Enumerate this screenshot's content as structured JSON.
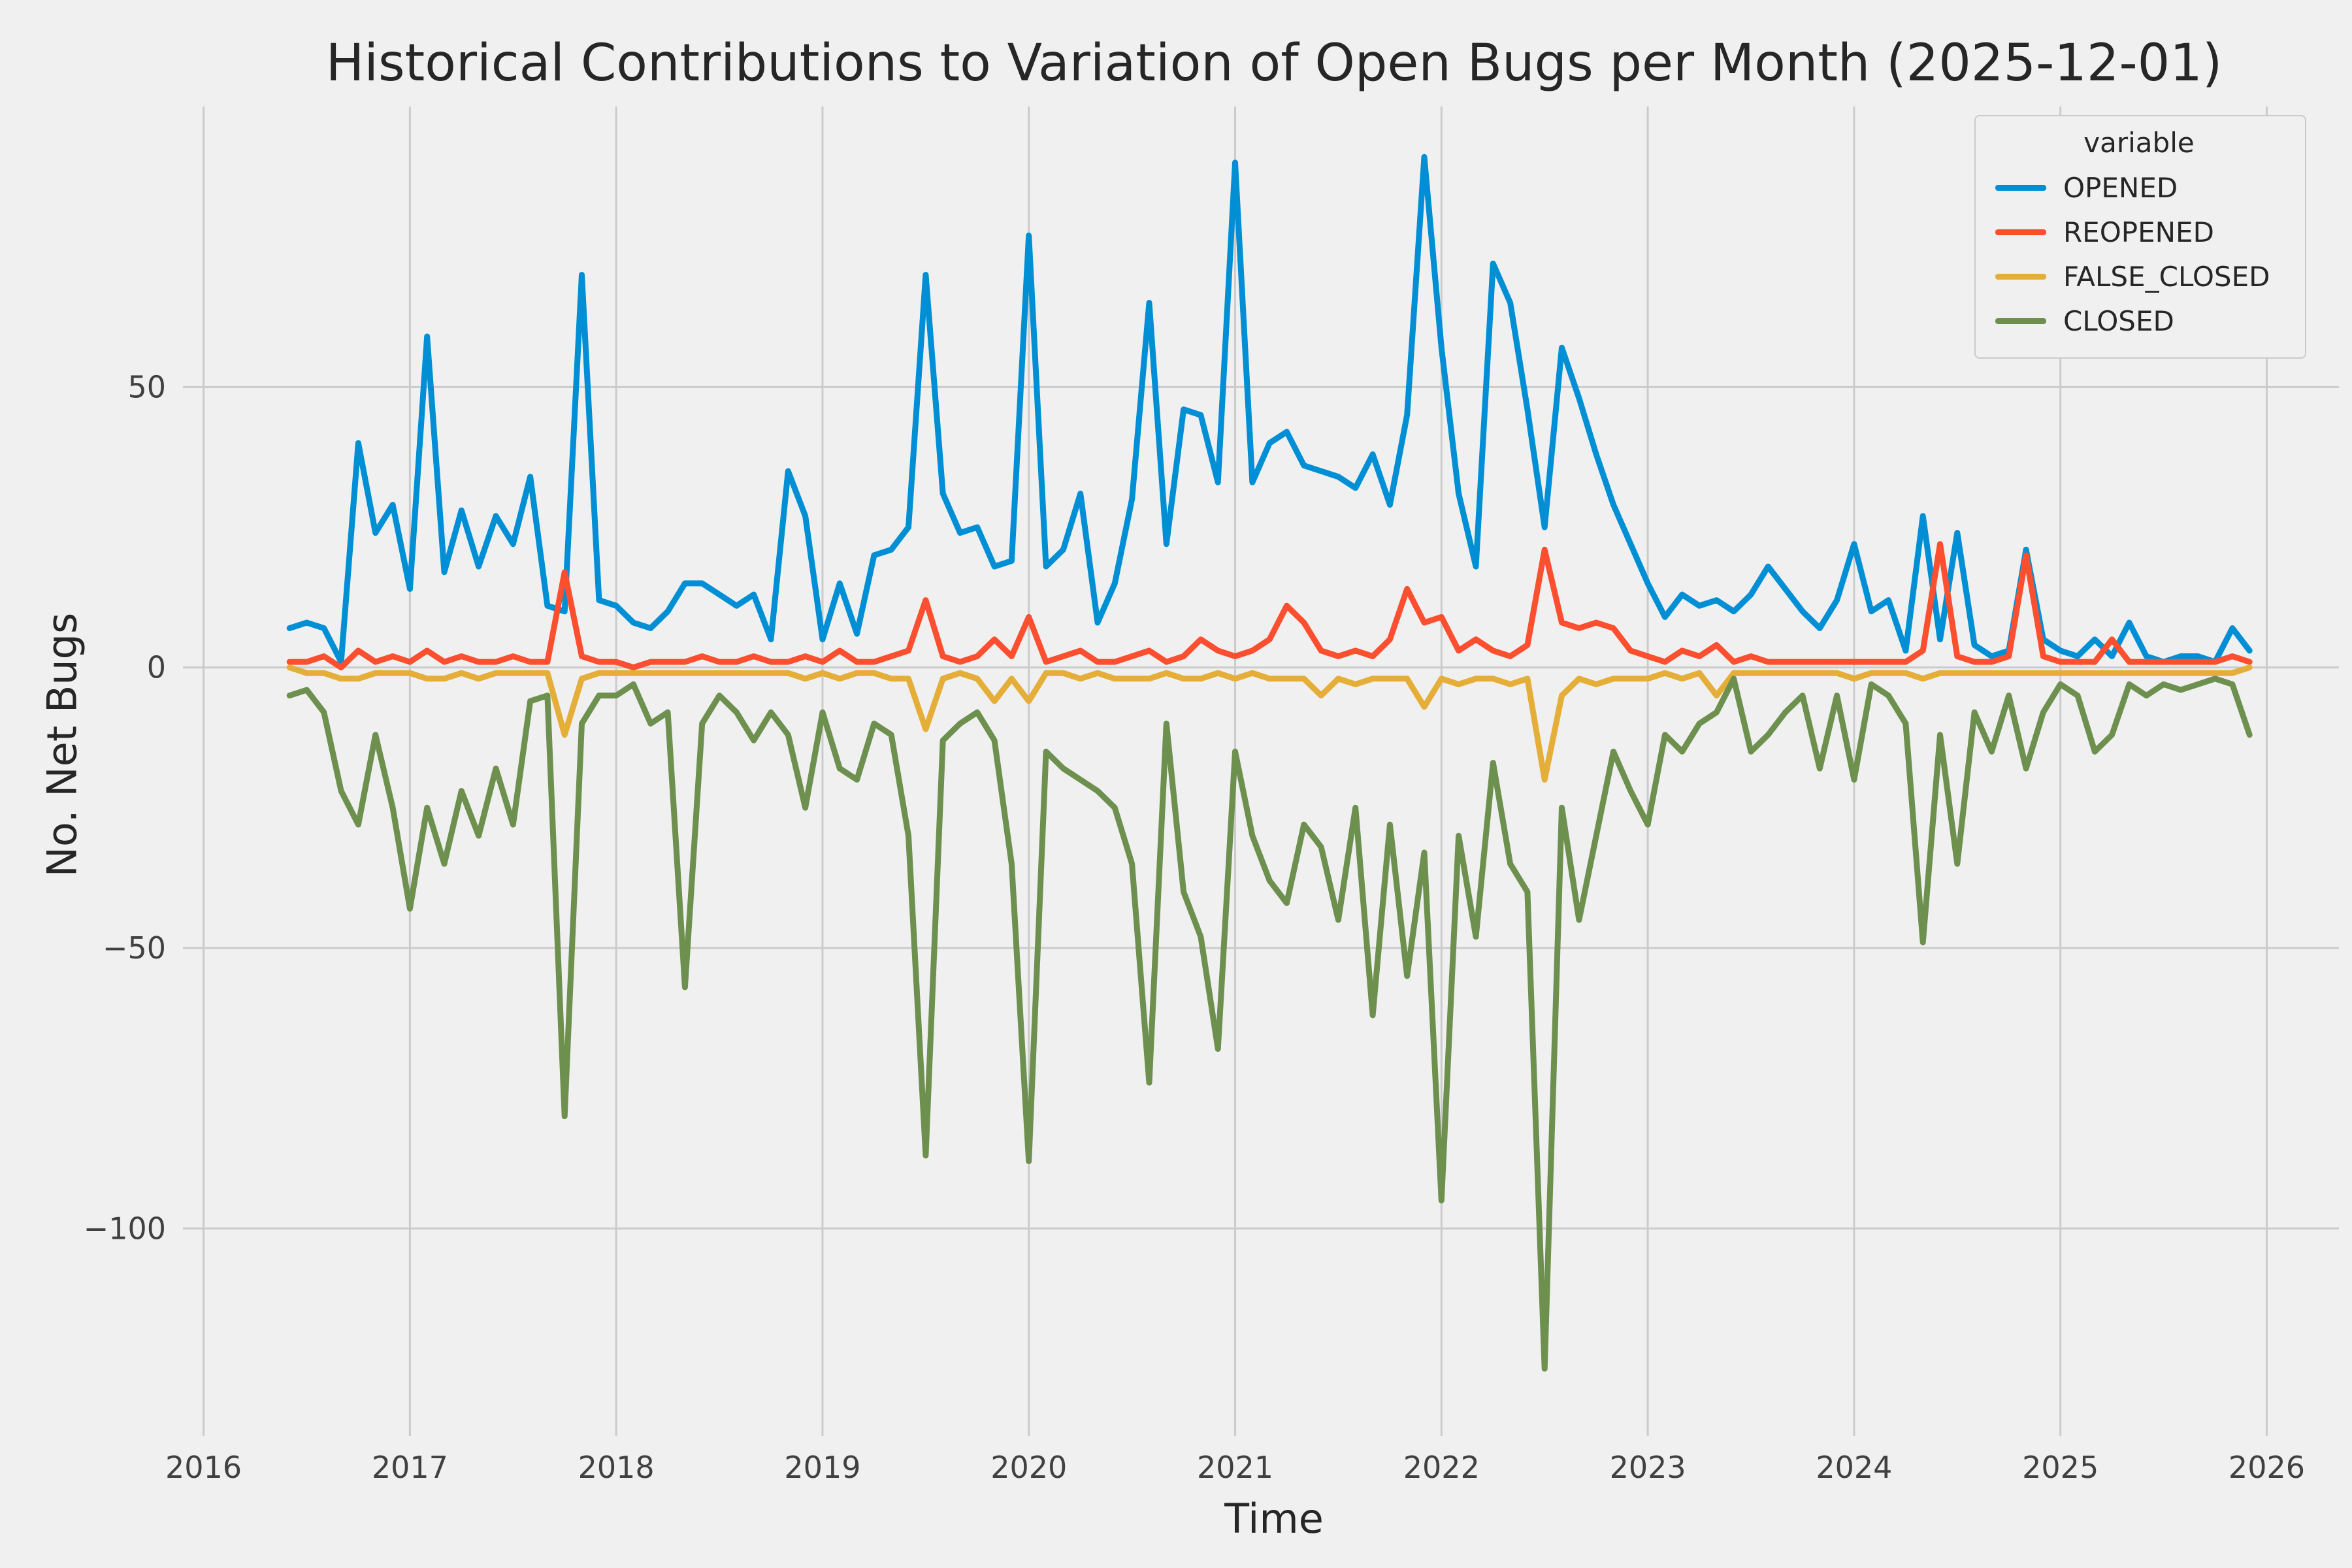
{
  "title": "Historical Contributions to Variation of Open Bugs per Month (2025-12-01)",
  "xlabel": "Time",
  "ylabel": "No. Net Bugs",
  "legend": {
    "title": "variable",
    "entries": [
      "OPENED",
      "REOPENED",
      "FALSE_CLOSED",
      "CLOSED"
    ]
  },
  "colors": {
    "background": "#f0f0f0",
    "grid": "#cbcbcb",
    "tick_text": "#404040",
    "title_text": "#262626",
    "opened": "#008fd5",
    "reopened": "#fc4f30",
    "false_closed": "#e5ae38",
    "closed": "#6d904f"
  },
  "chart_data": {
    "type": "line",
    "title": "Historical Contributions to Variation of Open Bugs per Month (2025-12-01)",
    "xlabel": "Time",
    "ylabel": "No. Net Bugs",
    "grid": true,
    "legend_position": "upper right",
    "x_axis_ticks": [
      2016,
      2017,
      2018,
      2019,
      2020,
      2021,
      2022,
      2023,
      2024,
      2025,
      2026
    ],
    "y_axis_ticks": [
      50,
      0,
      -50,
      -100
    ],
    "xlim": [
      2015.9,
      2026.35
    ],
    "ylim": [
      -137,
      100
    ],
    "x_start": "2016-06",
    "x_end": "2025-12",
    "x_start_decimal": 2016.4167,
    "x_step_decimal": 0.0833333,
    "series": [
      {
        "name": "OPENED",
        "color": "#008fd5",
        "values": [
          7,
          8,
          7,
          1,
          40,
          24,
          29,
          14,
          59,
          17,
          28,
          18,
          27,
          22,
          34,
          11,
          10,
          70,
          12,
          11,
          8,
          7,
          10,
          15,
          15,
          13,
          11,
          13,
          5,
          35,
          27,
          5,
          15,
          6,
          20,
          21,
          25,
          70,
          31,
          24,
          25,
          18,
          19,
          77,
          18,
          21,
          31,
          8,
          15,
          30,
          65,
          22,
          46,
          45,
          33,
          90,
          33,
          40,
          42,
          36,
          35,
          34,
          32,
          38,
          29,
          45,
          91,
          57,
          31,
          18,
          72,
          65,
          46,
          25,
          57,
          48,
          38,
          29,
          22,
          15,
          9,
          13,
          11,
          12,
          10,
          13,
          18,
          14,
          10,
          7,
          12,
          22,
          10,
          12,
          3,
          27,
          5,
          24,
          4,
          2,
          3,
          21,
          5,
          3,
          2,
          5,
          2,
          8,
          2,
          1,
          2,
          2,
          1,
          7,
          3
        ]
      },
      {
        "name": "REOPENED",
        "color": "#fc4f30",
        "values": [
          1,
          1,
          2,
          0,
          3,
          1,
          2,
          1,
          3,
          1,
          2,
          1,
          1,
          2,
          1,
          1,
          17,
          2,
          1,
          1,
          0,
          1,
          1,
          1,
          2,
          1,
          1,
          2,
          1,
          1,
          2,
          1,
          3,
          1,
          1,
          2,
          3,
          12,
          2,
          1,
          2,
          5,
          2,
          9,
          1,
          2,
          3,
          1,
          1,
          2,
          3,
          1,
          2,
          5,
          3,
          2,
          3,
          5,
          11,
          8,
          3,
          2,
          3,
          2,
          5,
          14,
          8,
          9,
          3,
          5,
          3,
          2,
          4,
          21,
          8,
          7,
          8,
          7,
          3,
          2,
          1,
          3,
          2,
          4,
          1,
          2,
          1,
          1,
          1,
          1,
          1,
          1,
          1,
          1,
          1,
          3,
          22,
          2,
          1,
          1,
          2,
          20,
          2,
          1,
          1,
          1,
          5,
          1,
          1,
          1,
          1,
          1,
          1,
          2,
          1
        ]
      },
      {
        "name": "FALSE_CLOSED",
        "color": "#e5ae38",
        "values": [
          0,
          -1,
          -1,
          -2,
          -2,
          -1,
          -1,
          -1,
          -2,
          -2,
          -1,
          -2,
          -1,
          -1,
          -1,
          -1,
          -12,
          -2,
          -1,
          -1,
          -1,
          -1,
          -1,
          -1,
          -1,
          -1,
          -1,
          -1,
          -1,
          -1,
          -2,
          -1,
          -2,
          -1,
          -1,
          -2,
          -2,
          -11,
          -2,
          -1,
          -2,
          -6,
          -2,
          -6,
          -1,
          -1,
          -2,
          -1,
          -2,
          -2,
          -2,
          -1,
          -2,
          -2,
          -1,
          -2,
          -1,
          -2,
          -2,
          -2,
          -5,
          -2,
          -3,
          -2,
          -2,
          -2,
          -7,
          -2,
          -3,
          -2,
          -2,
          -3,
          -2,
          -20,
          -5,
          -2,
          -3,
          -2,
          -2,
          -2,
          -1,
          -2,
          -1,
          -5,
          -1,
          -1,
          -1,
          -1,
          -1,
          -1,
          -1,
          -2,
          -1,
          -1,
          -1,
          -2,
          -1,
          -1,
          -1,
          -1,
          -1,
          -1,
          -1,
          -1,
          -1,
          -1,
          -1,
          -1,
          -1,
          -1,
          -1,
          -1,
          -1,
          -1,
          0
        ]
      },
      {
        "name": "CLOSED",
        "color": "#6d904f",
        "values": [
          -5,
          -4,
          -8,
          -22,
          -28,
          -12,
          -25,
          -43,
          -25,
          -35,
          -22,
          -30,
          -18,
          -28,
          -6,
          -5,
          -80,
          -10,
          -5,
          -5,
          -3,
          -10,
          -8,
          -57,
          -10,
          -5,
          -8,
          -13,
          -8,
          -12,
          -25,
          -8,
          -18,
          -20,
          -10,
          -12,
          -30,
          -87,
          -13,
          -10,
          -8,
          -13,
          -35,
          -88,
          -15,
          -18,
          -20,
          -22,
          -25,
          -35,
          -74,
          -10,
          -40,
          -48,
          -68,
          -15,
          -30,
          -38,
          -42,
          -28,
          -32,
          -45,
          -25,
          -62,
          -28,
          -55,
          -33,
          -95,
          -30,
          -48,
          -17,
          -35,
          -40,
          -125,
          -25,
          -45,
          -30,
          -15,
          -22,
          -28,
          -12,
          -15,
          -10,
          -8,
          -2,
          -15,
          -12,
          -8,
          -5,
          -18,
          -5,
          -20,
          -3,
          -5,
          -10,
          -49,
          -12,
          -35,
          -8,
          -15,
          -5,
          -18,
          -8,
          -3,
          -5,
          -15,
          -12,
          -3,
          -5,
          -3,
          -4,
          -3,
          -2,
          -3,
          -12
        ]
      }
    ]
  }
}
